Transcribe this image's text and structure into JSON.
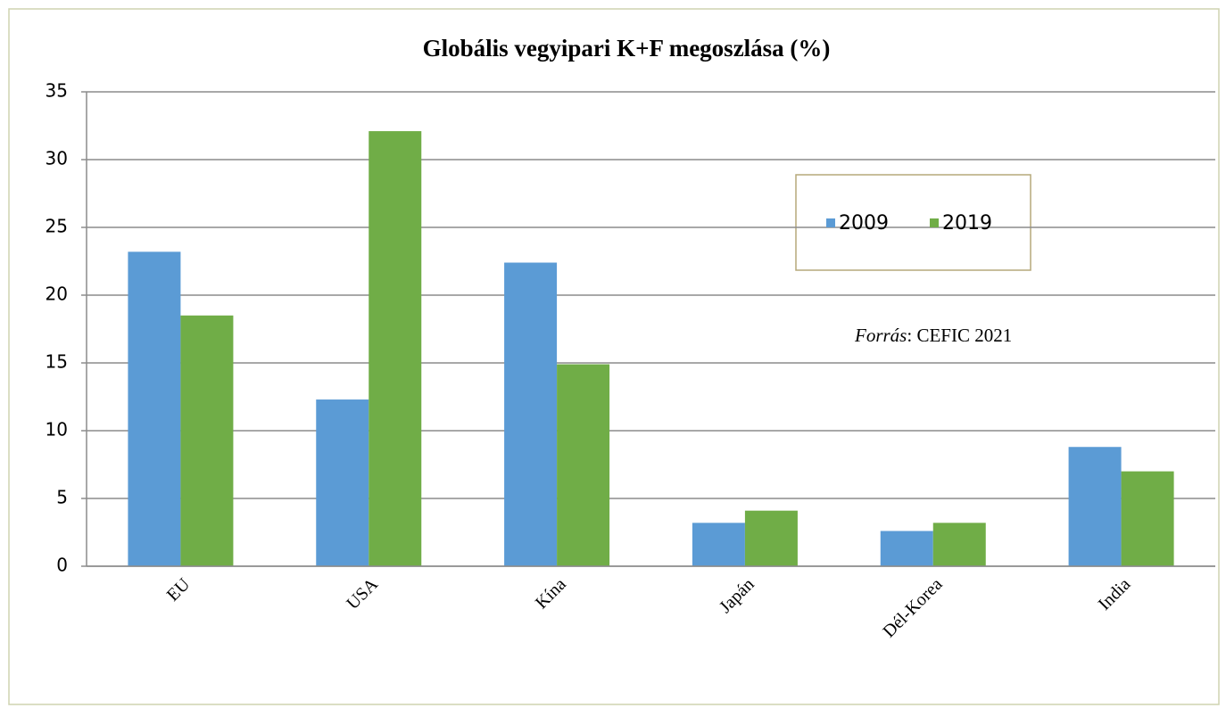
{
  "chart_data": {
    "type": "bar",
    "title": "Globális vegyipari K+F megoszlása (%)",
    "categories": [
      "EU",
      "USA",
      "Kína",
      "Japán",
      "Dél-Korea",
      "India"
    ],
    "series": [
      {
        "name": "2009",
        "color": "#5b9bd5",
        "values": [
          23.2,
          12.3,
          22.4,
          3.2,
          2.6,
          8.8
        ]
      },
      {
        "name": "2019",
        "color": "#70ad47",
        "values": [
          18.5,
          32.1,
          14.9,
          4.1,
          3.2,
          7.0
        ]
      }
    ],
    "ylim": [
      0,
      35
    ],
    "yticks": [
      0,
      5,
      10,
      15,
      20,
      25,
      30,
      35
    ],
    "grid": true,
    "legend": "upper right",
    "annotation": {
      "label": "Forrás",
      "text": ": CEFIC 2021"
    }
  }
}
